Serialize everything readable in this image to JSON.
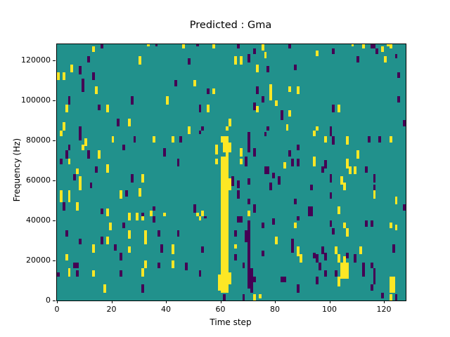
{
  "chart_data": {
    "type": "heatmap",
    "title": "Predicted : Gma",
    "xlabel": "Time step",
    "ylabel": "Frequency (Hz)",
    "x_ticks": [
      0,
      20,
      40,
      60,
      80,
      100,
      120
    ],
    "y_ticks": [
      0,
      20000,
      40000,
      60000,
      80000,
      100000,
      120000
    ],
    "x_range": [
      0,
      128
    ],
    "y_range": [
      0,
      128000
    ],
    "grid_cols": 128,
    "grid_rows": 128,
    "legend": "none",
    "grid_lines": false,
    "colors": {
      "background": "#21918c",
      "high": "#fde725",
      "low": "#440154",
      "text": "#000000",
      "figure_bg": "#ffffff"
    },
    "notes": "viridis colormap; mid value background, high=yellow cells, low=dark purple cells; dense yellow band near time step 60-63, dark streak near 70",
    "cells_high": [
      [
        13,
        124,
        1,
        3
      ],
      [
        33,
        127,
        1,
        1
      ],
      [
        30,
        118,
        1,
        4
      ],
      [
        5,
        114,
        1,
        4
      ],
      [
        0,
        110,
        1,
        4
      ],
      [
        2,
        110,
        1,
        4
      ],
      [
        14,
        103,
        1,
        4
      ],
      [
        40,
        98,
        1,
        4
      ],
      [
        18,
        94,
        1,
        4
      ],
      [
        3,
        94,
        1,
        4
      ],
      [
        26,
        87,
        1,
        4
      ],
      [
        2,
        85,
        1,
        4
      ],
      [
        46,
        126,
        1,
        2
      ],
      [
        57,
        126,
        1,
        2
      ],
      [
        75,
        125,
        1,
        3
      ],
      [
        76,
        121,
        1,
        3
      ],
      [
        65,
        118,
        1,
        4
      ],
      [
        67,
        118,
        1,
        4
      ],
      [
        73,
        114,
        1,
        4
      ],
      [
        50,
        107,
        1,
        3
      ],
      [
        57,
        103,
        1,
        3
      ],
      [
        78,
        100,
        1,
        8
      ],
      [
        80,
        97,
        1,
        3
      ],
      [
        55,
        94,
        1,
        4
      ],
      [
        73,
        94,
        1,
        3
      ],
      [
        63,
        87,
        1,
        4
      ],
      [
        62,
        85,
        1,
        2
      ],
      [
        48,
        85,
        1,
        2
      ],
      [
        84,
        85,
        1,
        3
      ],
      [
        108,
        127,
        1,
        1
      ],
      [
        112,
        126,
        1,
        2
      ],
      [
        119,
        124,
        1,
        3
      ],
      [
        121,
        127,
        1,
        1
      ],
      [
        95,
        122,
        1,
        3
      ],
      [
        120,
        119,
        1,
        3
      ],
      [
        85,
        104,
        1,
        3
      ],
      [
        88,
        103,
        1,
        4
      ],
      [
        103,
        94,
        1,
        4
      ],
      [
        85,
        92,
        1,
        3
      ],
      [
        95,
        85,
        1,
        2
      ],
      [
        122,
        126,
        1,
        2
      ],
      [
        1,
        82,
        1,
        3
      ],
      [
        10,
        77,
        1,
        4
      ],
      [
        9,
        75,
        1,
        3
      ],
      [
        20,
        79,
        1,
        3
      ],
      [
        35,
        79,
        1,
        3
      ],
      [
        42,
        79,
        1,
        3
      ],
      [
        4,
        68,
        1,
        3
      ],
      [
        15,
        71,
        1,
        4
      ],
      [
        18,
        64,
        1,
        4
      ],
      [
        7,
        63,
        1,
        3
      ],
      [
        8,
        55,
        1,
        7
      ],
      [
        31,
        59,
        1,
        4
      ],
      [
        30,
        52,
        1,
        4
      ],
      [
        1,
        49,
        1,
        6
      ],
      [
        4,
        49,
        1,
        6
      ],
      [
        7,
        45,
        1,
        4
      ],
      [
        23,
        51,
        1,
        4
      ],
      [
        18,
        42,
        1,
        4
      ],
      [
        26,
        42,
        1,
        2
      ],
      [
        29,
        42,
        1,
        2
      ],
      [
        34,
        42,
        1,
        3
      ],
      [
        39,
        42,
        1,
        2
      ],
      [
        48,
        83,
        1,
        2
      ],
      [
        42,
        79,
        1,
        3
      ],
      [
        60,
        79,
        1,
        3
      ],
      [
        58,
        73,
        1,
        5
      ],
      [
        63,
        74,
        1,
        5
      ],
      [
        67,
        72,
        1,
        4
      ],
      [
        58,
        68,
        1,
        3
      ],
      [
        67,
        68,
        1,
        3
      ],
      [
        83,
        66,
        1,
        3
      ],
      [
        70,
        42,
        1,
        3
      ],
      [
        51,
        42,
        1,
        2
      ],
      [
        53,
        42,
        1,
        3
      ],
      [
        60,
        4,
        3,
        68
      ],
      [
        59,
        5,
        1,
        8
      ],
      [
        63,
        8,
        1,
        6
      ],
      [
        63,
        55,
        1,
        6
      ],
      [
        62,
        72,
        1,
        10
      ],
      [
        61,
        74,
        1,
        8
      ],
      [
        94,
        82,
        1,
        3
      ],
      [
        98,
        79,
        1,
        3
      ],
      [
        106,
        78,
        1,
        4
      ],
      [
        122,
        79,
        1,
        3
      ],
      [
        94,
        67,
        1,
        5
      ],
      [
        110,
        71,
        1,
        4
      ],
      [
        106,
        66,
        1,
        5
      ],
      [
        107,
        63,
        1,
        4
      ],
      [
        109,
        63,
        1,
        4
      ],
      [
        104,
        58,
        1,
        4
      ],
      [
        105,
        55,
        1,
        4
      ],
      [
        116,
        51,
        1,
        4
      ],
      [
        124,
        48,
        1,
        4
      ],
      [
        103,
        43,
        1,
        4
      ],
      [
        26,
        40,
        1,
        2
      ],
      [
        29,
        40,
        1,
        2
      ],
      [
        31,
        40,
        1,
        2
      ],
      [
        19,
        35,
        1,
        4
      ],
      [
        26,
        31,
        1,
        4
      ],
      [
        32,
        28,
        1,
        7
      ],
      [
        18,
        28,
        1,
        4
      ],
      [
        13,
        24,
        1,
        4
      ],
      [
        26,
        24,
        1,
        3
      ],
      [
        3,
        20,
        1,
        3
      ],
      [
        32,
        16,
        1,
        4
      ],
      [
        4,
        12,
        1,
        4
      ],
      [
        13,
        12,
        1,
        3
      ],
      [
        31,
        12,
        1,
        4
      ],
      [
        17,
        4,
        1,
        4
      ],
      [
        52,
        40,
        1,
        2
      ],
      [
        42,
        23,
        1,
        5
      ],
      [
        65,
        26,
        1,
        2
      ],
      [
        42,
        16,
        1,
        4
      ],
      [
        80,
        28,
        1,
        4
      ],
      [
        72,
        0,
        1,
        3
      ],
      [
        74,
        1,
        1,
        2
      ],
      [
        87,
        36,
        1,
        3
      ],
      [
        105,
        36,
        1,
        3
      ],
      [
        106,
        32,
        1,
        4
      ],
      [
        122,
        36,
        1,
        3
      ],
      [
        124,
        35,
        1,
        3
      ],
      [
        88,
        22,
        1,
        5
      ],
      [
        89,
        19,
        1,
        4
      ],
      [
        102,
        23,
        1,
        4
      ],
      [
        103,
        19,
        1,
        4
      ],
      [
        111,
        23,
        1,
        4
      ],
      [
        105,
        18,
        1,
        4
      ],
      [
        104,
        11,
        3,
        8
      ],
      [
        103,
        7,
        1,
        5
      ],
      [
        122,
        4,
        2,
        8
      ],
      [
        122,
        0,
        1,
        3
      ]
    ],
    "cells_low": [
      [
        16,
        126,
        1,
        2
      ],
      [
        36,
        127,
        1,
        1
      ],
      [
        11,
        119,
        1,
        3
      ],
      [
        8,
        113,
        1,
        4
      ],
      [
        13,
        110,
        1,
        4
      ],
      [
        9,
        104,
        1,
        7
      ],
      [
        4,
        98,
        1,
        4
      ],
      [
        27,
        98,
        1,
        4
      ],
      [
        15,
        95,
        1,
        3
      ],
      [
        22,
        87,
        1,
        4
      ],
      [
        8,
        85,
        1,
        2
      ],
      [
        51,
        127,
        1,
        1
      ],
      [
        66,
        126,
        1,
        2
      ],
      [
        72,
        123,
        1,
        3
      ],
      [
        70,
        119,
        1,
        4
      ],
      [
        48,
        118,
        1,
        3
      ],
      [
        77,
        114,
        1,
        3
      ],
      [
        43,
        107,
        1,
        3
      ],
      [
        55,
        103,
        1,
        3
      ],
      [
        73,
        103,
        1,
        4
      ],
      [
        75,
        99,
        1,
        3
      ],
      [
        52,
        94,
        1,
        4
      ],
      [
        72,
        95,
        1,
        4
      ],
      [
        82,
        90,
        1,
        5
      ],
      [
        77,
        85,
        1,
        2
      ],
      [
        53,
        85,
        1,
        2
      ],
      [
        85,
        126,
        1,
        2
      ],
      [
        115,
        126,
        2,
        2
      ],
      [
        117,
        123,
        1,
        3
      ],
      [
        101,
        123,
        1,
        3
      ],
      [
        110,
        119,
        1,
        3
      ],
      [
        124,
        121,
        1,
        2
      ],
      [
        87,
        115,
        1,
        3
      ],
      [
        125,
        111,
        1,
        3
      ],
      [
        125,
        99,
        1,
        3
      ],
      [
        101,
        94,
        1,
        4
      ],
      [
        127,
        87,
        1,
        3
      ],
      [
        100,
        85,
        1,
        2
      ],
      [
        8,
        80,
        1,
        5
      ],
      [
        4,
        75,
        1,
        3
      ],
      [
        3,
        71,
        1,
        4
      ],
      [
        1,
        68,
        1,
        3
      ],
      [
        11,
        71,
        1,
        4
      ],
      [
        28,
        79,
        1,
        3
      ],
      [
        24,
        75,
        1,
        3
      ],
      [
        39,
        72,
        1,
        4
      ],
      [
        14,
        64,
        1,
        3
      ],
      [
        6,
        60,
        1,
        3
      ],
      [
        12,
        56,
        1,
        3
      ],
      [
        27,
        59,
        1,
        4
      ],
      [
        2,
        45,
        1,
        4
      ],
      [
        25,
        52,
        1,
        3
      ],
      [
        16,
        43,
        1,
        3
      ],
      [
        31,
        42,
        1,
        2
      ],
      [
        35,
        45,
        1,
        2
      ],
      [
        52,
        83,
        1,
        2
      ],
      [
        45,
        79,
        1,
        3
      ],
      [
        70,
        74,
        1,
        10
      ],
      [
        72,
        72,
        1,
        4
      ],
      [
        69,
        67,
        1,
        5
      ],
      [
        44,
        67,
        1,
        4
      ],
      [
        64,
        57,
        1,
        5
      ],
      [
        66,
        56,
        1,
        4
      ],
      [
        66,
        51,
        1,
        4
      ],
      [
        76,
        63,
        2,
        4
      ],
      [
        79,
        61,
        1,
        3
      ],
      [
        70,
        58,
        1,
        3
      ],
      [
        78,
        55,
        1,
        4
      ],
      [
        70,
        48,
        1,
        3
      ],
      [
        72,
        44,
        1,
        4
      ],
      [
        50,
        44,
        1,
        4
      ],
      [
        76,
        82,
        1,
        2
      ],
      [
        81,
        58,
        1,
        4
      ],
      [
        100,
        82,
        1,
        3
      ],
      [
        101,
        78,
        1,
        4
      ],
      [
        114,
        79,
        1,
        3
      ],
      [
        118,
        79,
        1,
        3
      ],
      [
        88,
        75,
        1,
        3
      ],
      [
        85,
        72,
        1,
        3
      ],
      [
        86,
        67,
        1,
        4
      ],
      [
        88,
        67,
        1,
        4
      ],
      [
        98,
        66,
        1,
        4
      ],
      [
        97,
        64,
        1,
        3
      ],
      [
        113,
        64,
        1,
        3
      ],
      [
        100,
        59,
        1,
        4
      ],
      [
        116,
        59,
        1,
        4
      ],
      [
        93,
        55,
        1,
        3
      ],
      [
        116,
        54,
        1,
        4
      ],
      [
        100,
        51,
        1,
        3
      ],
      [
        87,
        48,
        1,
        3
      ],
      [
        92,
        42,
        2,
        5
      ],
      [
        127,
        45,
        1,
        3
      ],
      [
        35,
        39,
        1,
        3
      ],
      [
        24,
        36,
        1,
        3
      ],
      [
        3,
        32,
        1,
        3
      ],
      [
        8,
        28,
        1,
        3
      ],
      [
        16,
        28,
        1,
        4
      ],
      [
        21,
        25,
        1,
        3
      ],
      [
        37,
        32,
        1,
        3
      ],
      [
        38,
        24,
        1,
        4
      ],
      [
        23,
        20,
        1,
        4
      ],
      [
        6,
        16,
        2,
        3
      ],
      [
        37,
        16,
        1,
        3
      ],
      [
        7,
        12,
        1,
        3
      ],
      [
        23,
        12,
        1,
        3
      ],
      [
        0,
        12,
        1,
        2
      ],
      [
        31,
        4,
        1,
        4
      ],
      [
        54,
        41,
        1,
        1
      ],
      [
        66,
        39,
        2,
        3
      ],
      [
        70,
        37,
        1,
        3
      ],
      [
        75,
        36,
        1,
        3
      ],
      [
        79,
        38,
        1,
        3
      ],
      [
        44,
        32,
        1,
        3
      ],
      [
        65,
        32,
        1,
        3
      ],
      [
        70,
        6,
        1,
        31
      ],
      [
        69,
        29,
        1,
        6
      ],
      [
        53,
        24,
        1,
        3
      ],
      [
        65,
        20,
        1,
        3
      ],
      [
        75,
        22,
        1,
        3
      ],
      [
        47,
        15,
        1,
        4
      ],
      [
        68,
        16,
        1,
        3
      ],
      [
        52,
        12,
        1,
        3
      ],
      [
        71,
        4,
        1,
        12
      ],
      [
        72,
        9,
        1,
        3
      ],
      [
        82,
        9,
        1,
        3
      ],
      [
        83,
        9,
        1,
        3
      ],
      [
        68,
        0,
        1,
        3
      ],
      [
        61,
        0,
        1,
        3
      ],
      [
        88,
        40,
        1,
        2
      ],
      [
        100,
        37,
        1,
        3
      ],
      [
        101,
        33,
        1,
        3
      ],
      [
        113,
        37,
        1,
        3
      ],
      [
        115,
        37,
        1,
        3
      ],
      [
        86,
        24,
        1,
        7
      ],
      [
        123,
        24,
        1,
        4
      ],
      [
        94,
        21,
        1,
        3
      ],
      [
        95,
        19,
        1,
        4
      ],
      [
        97,
        23,
        1,
        4
      ],
      [
        98,
        20,
        1,
        4
      ],
      [
        106,
        21,
        1,
        3
      ],
      [
        109,
        19,
        1,
        4
      ],
      [
        96,
        15,
        1,
        4
      ],
      [
        98,
        12,
        1,
        3
      ],
      [
        102,
        12,
        1,
        3
      ],
      [
        112,
        12,
        1,
        7
      ],
      [
        115,
        16,
        1,
        3
      ],
      [
        116,
        11,
        1,
        5
      ],
      [
        116,
        8,
        1,
        4
      ],
      [
        95,
        8,
        1,
        4
      ],
      [
        88,
        4,
        1,
        4
      ],
      [
        115,
        5,
        1,
        3
      ],
      [
        119,
        1,
        1,
        3
      ],
      [
        124,
        0,
        1,
        3
      ]
    ]
  }
}
